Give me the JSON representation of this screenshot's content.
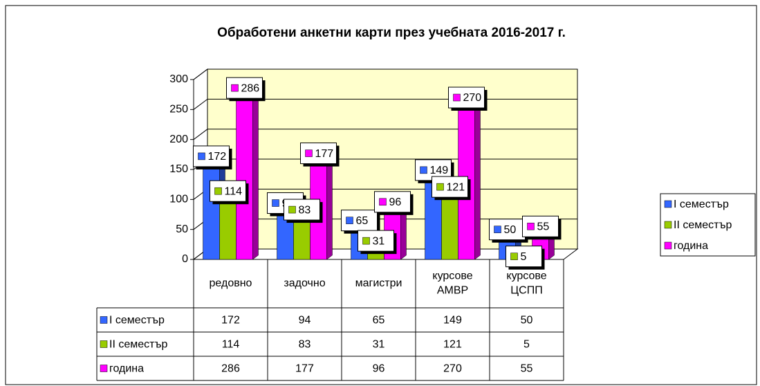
{
  "chart_data": {
    "type": "bar3d",
    "title": "Обработени анкетни карти през учебната 2016-2017 г.",
    "categories": [
      "редовно",
      "задочно",
      "магистри",
      "курсове АМВР",
      "курсове ЦСПП"
    ],
    "series": [
      {
        "name": "I семестър",
        "color": "#3366ff",
        "values": [
          172,
          94,
          65,
          149,
          50
        ]
      },
      {
        "name": "II семестър",
        "color": "#99cc00",
        "values": [
          114,
          83,
          31,
          121,
          5
        ]
      },
      {
        "name": "година",
        "color": "#ff00ff",
        "values": [
          286,
          177,
          96,
          270,
          55
        ]
      }
    ],
    "ylim": [
      0,
      300
    ],
    "yticks": [
      0,
      50,
      100,
      150,
      200,
      250,
      300
    ],
    "grid": true,
    "legend": "right",
    "wall_color": "#ffffcc"
  }
}
